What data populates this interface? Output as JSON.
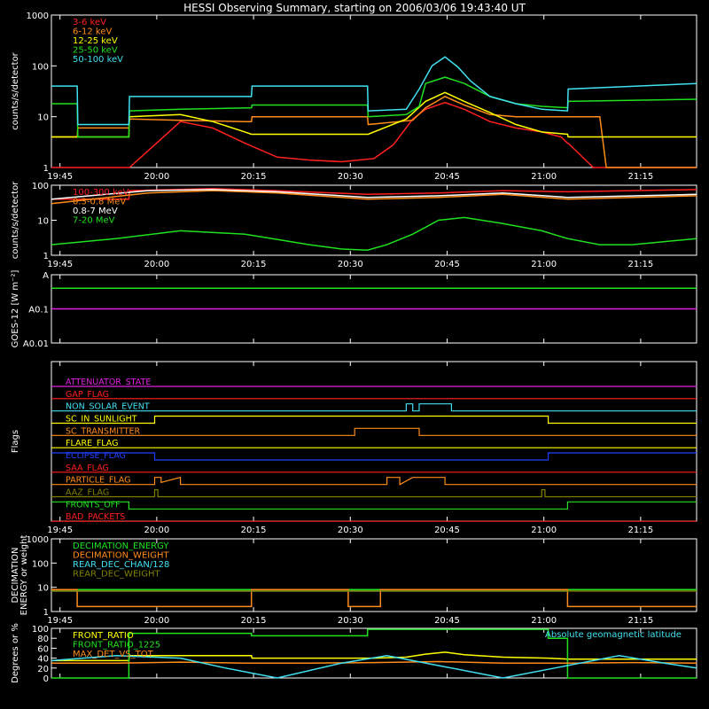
{
  "chart_data": {
    "title": "HESSI Observing Summary, starting on 2006/03/06 19:43:40 UT",
    "x_ticks": [
      "19:45",
      "20:00",
      "20:15",
      "20:30",
      "20:45",
      "21:00",
      "21:15"
    ],
    "x_tick_minutes": [
      1.33,
      16.33,
      31.33,
      46.33,
      61.33,
      76.33,
      91.33
    ],
    "xlim_minutes": [
      0,
      100
    ],
    "panels": [
      {
        "type": "line",
        "ylabel": "counts/s/detector",
        "yscale": "log",
        "ylim": [
          1,
          1000
        ],
        "y_ticks": [
          "1",
          "10",
          "100",
          "1000"
        ],
        "y_tick_values": [
          1,
          10,
          100,
          1000
        ],
        "legend": [
          "3-6 keV",
          "6-12 keV",
          "12-25 keV",
          "25-50 keV",
          "50-100 keV"
        ],
        "series": [
          {
            "name": "3-6 keV",
            "color": "#ff2020",
            "x": [
              0,
              4,
              4.1,
              12,
              12.1,
              20,
              25,
              30,
              35,
              40,
              45,
              50,
              53,
              56,
              58,
              61,
              64,
              68,
              72,
              76,
              79,
              80,
              80.1,
              84,
              84.1,
              100
            ],
            "y": [
              1,
              1,
              1,
              1,
              1,
              8,
              6,
              3,
              1.6,
              1.4,
              1.3,
              1.5,
              2.8,
              9,
              14,
              19,
              14,
              8,
              6,
              5,
              4,
              3,
              3,
              1,
              1,
              1
            ]
          },
          {
            "name": "6-12 keV",
            "color": "#ff8c1a",
            "x": [
              0,
              4,
              4.1,
              12,
              12.1,
              20,
              30,
              31,
              31.1,
              40,
              49,
              49.1,
              56,
              58,
              61,
              64,
              68,
              72,
              76,
              80,
              85,
              86,
              100
            ],
            "y": [
              4,
              4,
              6,
              6,
              9,
              8.5,
              8,
              8,
              10,
              10,
              10,
              7,
              8.5,
              15,
              25,
              17,
              11,
              10,
              10,
              10,
              10,
              1,
              1
            ]
          },
          {
            "name": "12-25 keV",
            "color": "#ffff00",
            "x": [
              0,
              4,
              4.1,
              12,
              12.1,
              20,
              25,
              30,
              31,
              31.1,
              40,
              49,
              49.1,
              55,
              58,
              61,
              64,
              68,
              72,
              76,
              80,
              80.1,
              100
            ],
            "y": [
              4,
              4,
              4,
              4,
              10,
              11,
              8,
              5,
              4.5,
              4.5,
              4.5,
              4.5,
              4.5,
              9,
              20,
              30,
              20,
              12,
              7,
              5,
              4.5,
              4,
              4
            ]
          },
          {
            "name": "25-50 keV",
            "color": "#20e020",
            "x": [
              0,
              4,
              4.1,
              12,
              12.1,
              20,
              31,
              31.1,
              49,
              49.1,
              55,
              57,
              58,
              61,
              64,
              68,
              72,
              76,
              80,
              80.1,
              100
            ],
            "y": [
              18,
              18,
              4,
              4,
              13,
              14,
              15,
              17,
              17,
              10,
              11,
              16,
              45,
              60,
              45,
              25,
              18,
              16,
              15,
              20,
              22
            ]
          },
          {
            "name": "50-100 keV",
            "color": "#40e0f0",
            "x": [
              0,
              4,
              4.1,
              12,
              12.1,
              31,
              31.1,
              49,
              49.1,
              55,
              57,
              59,
              61,
              63,
              65,
              68,
              72,
              76,
              80,
              80.1,
              100
            ],
            "y": [
              40,
              40,
              7,
              7,
              25,
              25,
              40,
              40,
              13,
              14,
              35,
              100,
              150,
              95,
              50,
              25,
              18,
              14,
              13,
              35,
              45
            ]
          }
        ]
      },
      {
        "type": "line",
        "ylabel": "counts/s/detector",
        "yscale": "log",
        "ylim": [
          1,
          100
        ],
        "y_ticks": [
          "1",
          "10",
          "100"
        ],
        "y_tick_values": [
          1,
          10,
          100
        ],
        "legend": [
          "100-300 keV",
          "0.3-0.8 MeV",
          "0.8-7 MeV",
          "7-20 MeV"
        ],
        "series": [
          {
            "name": "100-300 keV",
            "color": "#ff2020",
            "x": [
              0,
              12,
              12.1,
              25,
              35,
              49,
              49.1,
              60,
              70,
              80,
              80.1,
              100
            ],
            "y": [
              40,
              40,
              70,
              80,
              70,
              55,
              55,
              60,
              70,
              65,
              65,
              75
            ]
          },
          {
            "name": "0.3-0.8 MeV",
            "color": "#ff8c1a",
            "x": [
              0,
              15,
              25,
              35,
              49,
              60,
              70,
              80,
              100
            ],
            "y": [
              30,
              60,
              70,
              60,
              40,
              45,
              55,
              40,
              50
            ]
          },
          {
            "name": "0.8-7 MeV",
            "color": "#ffffff",
            "x": [
              0,
              15,
              25,
              35,
              49,
              60,
              70,
              80,
              100
            ],
            "y": [
              40,
              70,
              75,
              65,
              45,
              50,
              60,
              45,
              55
            ]
          },
          {
            "name": "7-20 MeV",
            "color": "#20e020",
            "x": [
              0,
              10,
              20,
              30,
              40,
              45,
              49,
              52,
              56,
              60,
              64,
              70,
              76,
              80,
              85,
              90,
              100
            ],
            "y": [
              2,
              3,
              5,
              4,
              2,
              1.5,
              1.4,
              2,
              4,
              10,
              12,
              8,
              5,
              3,
              2,
              2,
              3
            ]
          }
        ]
      },
      {
        "type": "line",
        "ylabel": "GOES-12 [W m⁻²]",
        "yscale": "log",
        "ylim": [
          0.01,
          1
        ],
        "y_ticks": [
          "A",
          "A0.1",
          "A0.01"
        ],
        "y_tick_values": [
          1,
          0.1,
          0.01
        ],
        "series": [
          {
            "name": "",
            "color": "#20e020",
            "x": [
              0,
              100
            ],
            "y": [
              0.4,
              0.4
            ]
          },
          {
            "name": "",
            "color": "#e020e0",
            "x": [
              0,
              100
            ],
            "y": [
              0.1,
              0.1
            ]
          }
        ]
      },
      {
        "type": "line",
        "ylabel": "Flags",
        "flags": [
          {
            "name": "ATTENUATOR_STATE",
            "color": "#e020e0",
            "x": [
              0,
              100
            ],
            "y": [
              0,
              0
            ]
          },
          {
            "name": "GAP_FLAG",
            "color": "#ff2020",
            "x": [
              0,
              100
            ],
            "y": [
              0,
              0
            ]
          },
          {
            "name": "NON_SOLAR_EVENT",
            "color": "#40e0f0",
            "x": [
              0,
              55,
              55,
              56,
              56,
              57,
              57,
              62,
              62,
              100
            ],
            "y": [
              0,
              0,
              1,
              1,
              0,
              0,
              1,
              1,
              0,
              0
            ]
          },
          {
            "name": "SC_IN_SUNLIGHT",
            "color": "#ffff00",
            "x": [
              0,
              16,
              16,
              77,
              77,
              100
            ],
            "y": [
              0,
              0,
              1,
              1,
              0,
              0
            ]
          },
          {
            "name": "SC_TRANSMITTER",
            "color": "#ff8c1a",
            "x": [
              0,
              47,
              47,
              57,
              57,
              100
            ],
            "y": [
              0,
              0,
              1,
              1,
              0,
              0
            ]
          },
          {
            "name": "FLARE_FLAG",
            "color": "#ffff00",
            "x": [
              0,
              100
            ],
            "y": [
              0,
              0
            ]
          },
          {
            "name": "ECLIPSE_FLAG",
            "color": "#2040ff",
            "x": [
              0,
              16,
              16,
              77,
              77,
              100
            ],
            "y": [
              1,
              1,
              0,
              0,
              1,
              1
            ]
          },
          {
            "name": "SAA_FLAG",
            "color": "#ff2020",
            "x": [
              0,
              100
            ],
            "y": [
              0,
              0
            ]
          },
          {
            "name": "PARTICLE_FLAG",
            "color": "#ff8c1a",
            "x": [
              0,
              16,
              16,
              17,
              17,
              20,
              20,
              52,
              52,
              54,
              54,
              56,
              56,
              61,
              61,
              100
            ],
            "y": [
              0,
              0,
              1,
              1,
              0.3,
              1,
              0,
              0,
              1,
              1,
              0,
              1,
              1,
              1,
              0,
              0
            ]
          },
          {
            "name": "AAZ_FLAG",
            "color": "#808000",
            "x": [
              0,
              16,
              16,
              16.5,
              16.5,
              76,
              76,
              76.5,
              76.5,
              100
            ],
            "y": [
              0,
              0,
              1,
              1,
              0,
              0,
              1,
              1,
              0,
              0
            ]
          },
          {
            "name": "FRONTS_OFF",
            "color": "#20e020",
            "x": [
              0,
              12,
              12,
              80,
              80,
              100
            ],
            "y": [
              1,
              1,
              0,
              0,
              1,
              1
            ]
          },
          {
            "name": "BAD_PACKETS",
            "color": "#ff2020",
            "x": [
              0,
              100
            ],
            "y": [
              0,
              0
            ]
          }
        ]
      },
      {
        "type": "line",
        "ylabel": "DECIMATION ENERGY or weight",
        "yscale": "log",
        "ylim": [
          1,
          1000
        ],
        "y_ticks": [
          "1",
          "10",
          "100",
          "1000"
        ],
        "y_tick_values": [
          1,
          10,
          100,
          1000
        ],
        "legend": [
          "DECIMATION_ENERGY",
          "DECIMATION_WEIGHT",
          "REAR_DEC_CHAN/128",
          "REAR_DEC_WEIGHT"
        ],
        "series": [
          {
            "name": "DECIMATION_ENERGY",
            "color": "#20e020",
            "x": [
              0,
              31,
              31,
              46,
              46,
              51,
              51,
              80,
              80,
              100
            ],
            "y": [
              8,
              8,
              8,
              8,
              8,
              8,
              8,
              8,
              8,
              8
            ]
          },
          {
            "name": "DECIMATION_WEIGHT",
            "color": "#ff8c1a",
            "x": [
              0,
              4,
              4,
              31,
              31,
              46,
              46,
              51,
              51,
              80,
              80,
              100
            ],
            "y": [
              8,
              8,
              1.6,
              1.6,
              8,
              8,
              1.6,
              1.6,
              8,
              8,
              1.6,
              1.6
            ]
          },
          {
            "name": "REAR_DEC_CHAN/128",
            "color": "#40e0f0",
            "x": [
              0,
              80
            ],
            "y": [
              7,
              7
            ]
          },
          {
            "name": "REAR_DEC_WEIGHT",
            "color": "#808000",
            "x": [
              0,
              100
            ],
            "y": [
              7,
              7
            ]
          }
        ]
      },
      {
        "type": "line",
        "ylabel": "Degrees or %",
        "yscale": "linear",
        "ylim": [
          0,
          100
        ],
        "y_ticks": [
          "0",
          "20",
          "40",
          "60",
          "80",
          "100"
        ],
        "y_tick_values": [
          0,
          20,
          40,
          60,
          80,
          100
        ],
        "legend": [
          "FRONT_RATIO",
          "FRONT_RATIO_1225",
          "MAX_DET_VS_TOT"
        ],
        "annotation": "Absolute geomagnetic latitude",
        "series": [
          {
            "name": "FRONT_RATIO",
            "color": "#ffff00",
            "x": [
              0,
              12,
              12.1,
              31,
              31.1,
              50,
              55,
              58,
              61,
              64,
              70,
              77,
              80,
              100
            ],
            "y": [
              35,
              35,
              45,
              45,
              40,
              40,
              42,
              48,
              52,
              47,
              42,
              40,
              38,
              38
            ]
          },
          {
            "name": "FRONT_RATIO_1225",
            "color": "#20e020",
            "x": [
              0,
              12,
              12,
              31,
              31,
              49,
              49,
              77,
              77,
              80,
              80,
              100
            ],
            "y": [
              0,
              0,
              90,
              90,
              85,
              85,
              98,
              98,
              80,
              80,
              0,
              0
            ]
          },
          {
            "name": "MAX_DET_VS_TOT",
            "color": "#ff8c1a",
            "x": [
              0,
              10,
              20,
              30,
              40,
              50,
              60,
              70,
              80,
              90,
              100
            ],
            "y": [
              30,
              30,
              32,
              30,
              30,
              31,
              33,
              30,
              30,
              31,
              30
            ]
          },
          {
            "name": "Absolute geomagnetic latitude",
            "color": "#40e0f0",
            "x": [
              0,
              10,
              20,
              27,
              35,
              45,
              52,
              60,
              70,
              78,
              88,
              95,
              100
            ],
            "y": [
              35,
              45,
              40,
              20,
              0,
              30,
              45,
              25,
              0,
              20,
              45,
              30,
              20
            ]
          }
        ]
      }
    ]
  }
}
